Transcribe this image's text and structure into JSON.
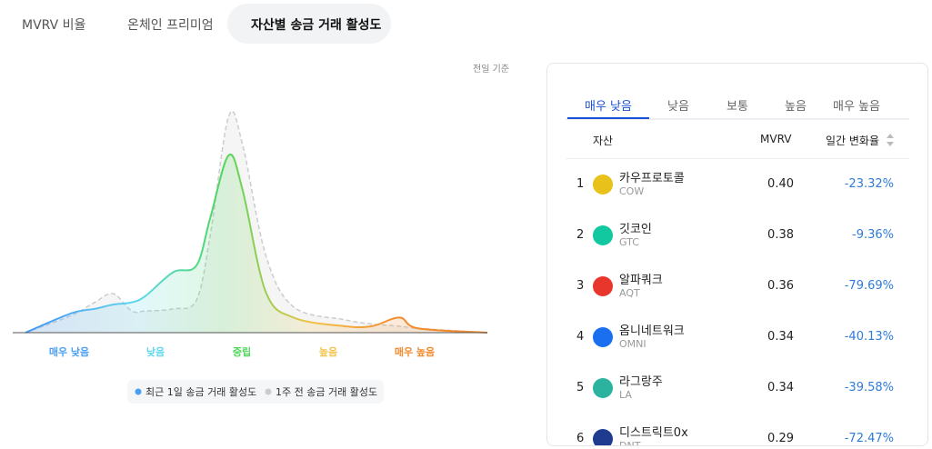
{
  "header": {
    "tabs": [
      "MVRV 비율",
      "온체인 프리미엄",
      "자산별 송금 거래 활성도"
    ],
    "active_tab": 2
  },
  "chart_data": {
    "type": "line",
    "note": "전일 기준",
    "categories": [
      "매우 낮음",
      "낮음",
      "중립",
      "높음",
      "매우 높음"
    ],
    "category_colors": [
      "#4a9ff5",
      "#5fd8ee",
      "#4fd65a",
      "#f3c34a",
      "#f28a2e"
    ],
    "x": [
      0,
      10,
      15,
      19,
      23,
      26,
      32,
      37,
      40,
      44,
      47,
      52,
      58,
      69,
      75,
      81,
      85,
      100
    ],
    "xlim": [
      0,
      100
    ],
    "ylim": [
      0,
      100
    ],
    "series": [
      {
        "name": "최근 1일 송금 거래 활성도",
        "color": "#4a9ff5",
        "values": [
          0,
          9,
          11,
          13,
          14,
          17,
          28,
          31,
          53,
          82,
          66,
          19,
          7,
          3,
          3,
          7,
          2,
          0
        ]
      },
      {
        "name": "1주 전 송금 거래 활성도",
        "color": "#cccccc",
        "dashed": true,
        "values": [
          0,
          8,
          14,
          18,
          10,
          10,
          11,
          15,
          45,
          100,
          87,
          36,
          12,
          6,
          4,
          3,
          2,
          0
        ]
      }
    ]
  },
  "table": {
    "tabs": [
      "매우 낮음",
      "낮음",
      "보통",
      "높음",
      "매우 높음"
    ],
    "active_tab": 0,
    "columns": [
      "자산",
      "MVRV",
      "일간 변화율"
    ],
    "rows": [
      {
        "rank": "1",
        "name": "카우프로토콜",
        "ticker": "COW",
        "mvrv": "0.40",
        "change": "-23.32%",
        "icon_color": "#e8c21a"
      },
      {
        "rank": "2",
        "name": "깃코인",
        "ticker": "GTC",
        "mvrv": "0.38",
        "change": "-9.36%",
        "icon_color": "#12c8a0"
      },
      {
        "rank": "3",
        "name": "알파쿼크",
        "ticker": "AQT",
        "mvrv": "0.36",
        "change": "-79.69%",
        "icon_color": "#e8362c"
      },
      {
        "rank": "4",
        "name": "옴니네트워크",
        "ticker": "OMNI",
        "mvrv": "0.34",
        "change": "-40.13%",
        "icon_color": "#1a6ff0"
      },
      {
        "rank": "5",
        "name": "라그랑주",
        "ticker": "LA",
        "mvrv": "0.34",
        "change": "-39.58%",
        "icon_color": "#2bb3a0"
      },
      {
        "rank": "6",
        "name": "디스트릭트0x",
        "ticker": "DNT",
        "mvrv": "0.29",
        "change": "-72.47%",
        "icon_color": "#1f3b8f"
      }
    ]
  }
}
